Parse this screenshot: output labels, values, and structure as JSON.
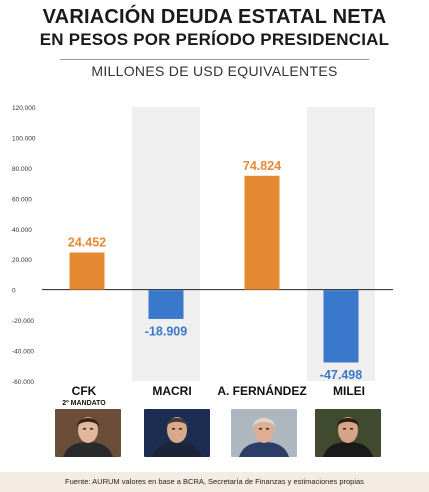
{
  "title_line1": "VARIACIÓN DEUDA ESTATAL NETA",
  "title_line2": "EN PESOS POR PERÍODO PRESIDENCIAL",
  "subtitle": "MILLONES DE USD EQUIVALENTES",
  "source": "Fuente: AURUM valores en base a BCRA, Secretaría de Finanzas y estimaciones propias",
  "colors": {
    "positive": "#e58a33",
    "negative": "#3a78cc",
    "shade": "#efefef",
    "axis": "#222222",
    "tick_text": "#333333"
  },
  "chart_data": {
    "type": "bar",
    "title": "VARIACIÓN DEUDA ESTATAL NETA EN PESOS POR PERÍODO PRESIDENCIAL",
    "ylabel": "MILLONES DE USD EQUIVALENTES",
    "categories": [
      "CFK",
      "MACRI",
      "A. FERNÁNDEZ",
      "MILEI"
    ],
    "category_notes": [
      "2º MANDATO",
      "",
      "",
      ""
    ],
    "values": [
      24452,
      -18909,
      74824,
      -47498
    ],
    "value_labels": [
      "24.452",
      "-18.909",
      "74.824",
      "-47.498"
    ],
    "ylim": [
      -60000,
      120000
    ],
    "yticks": [
      120000,
      100000,
      80000,
      60000,
      40000,
      20000,
      0,
      -20000,
      -40000,
      -60000
    ],
    "ytick_labels": [
      "120.000",
      "100.000",
      "80.000",
      "60.000",
      "40.000",
      "20.000",
      "0",
      "-20.000",
      "-40.000",
      "-60.000"
    ],
    "grid": false,
    "shaded_categories": [
      "MACRI",
      "MILEI"
    ]
  },
  "photos": [
    {
      "name": "cfk-photo",
      "bg": "#6a4e3a",
      "hair": "#3a2416",
      "skin": "#e1b69a",
      "shirt": "#2a2a2a"
    },
    {
      "name": "macri-photo",
      "bg": "#1d2d52",
      "hair": "#3c3c3c",
      "skin": "#d9a98a",
      "shirt": "#1c2438"
    },
    {
      "name": "fernandez-photo",
      "bg": "#aeb6bf",
      "hair": "#d8d8d8",
      "skin": "#dcae92",
      "shirt": "#2c3e66"
    },
    {
      "name": "milei-photo",
      "bg": "#3f4a2e",
      "hair": "#2b1d14",
      "skin": "#d6a588",
      "shirt": "#1a1a1a"
    }
  ]
}
